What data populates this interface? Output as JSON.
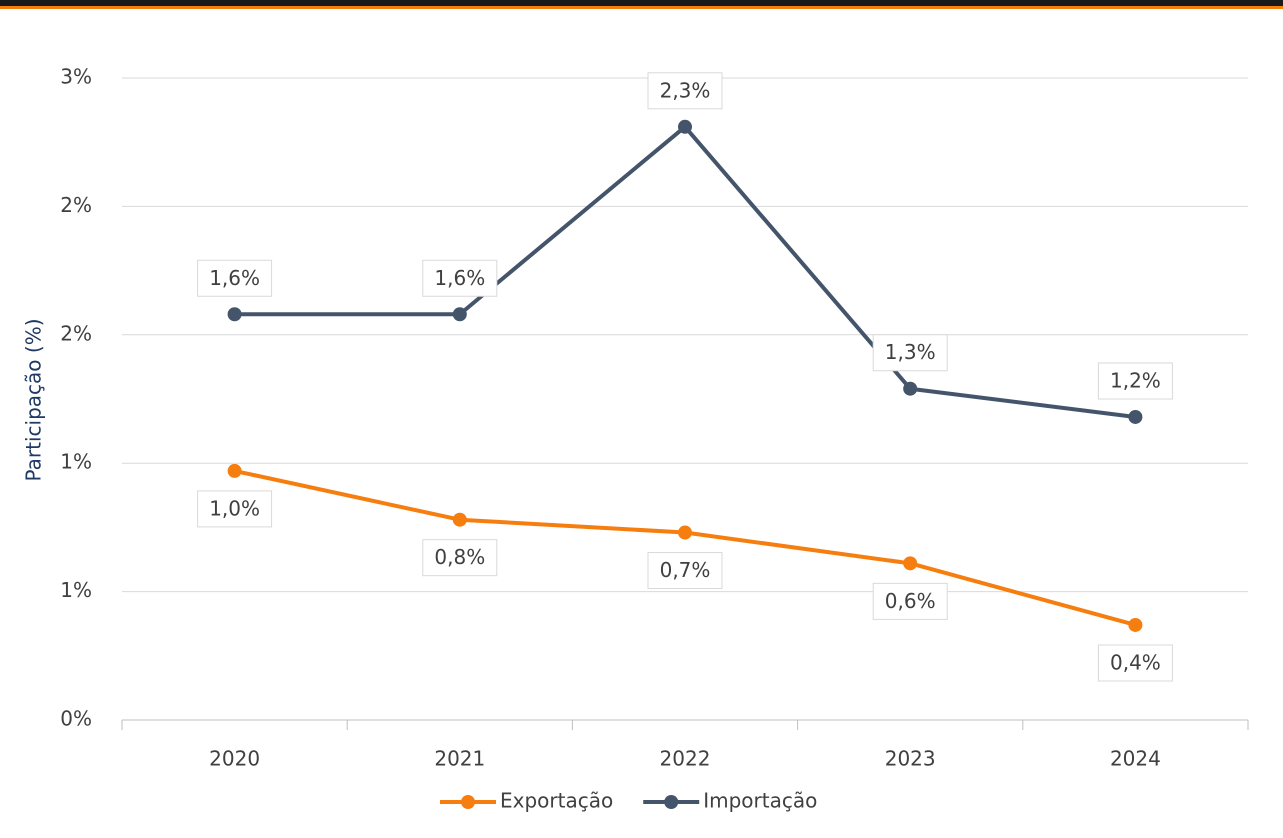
{
  "chart_data": {
    "type": "line",
    "y_label": "Participação (%)",
    "categories": [
      "2020",
      "2021",
      "2022",
      "2023",
      "2024"
    ],
    "series": [
      {
        "name": "Exportação",
        "color": "#f57e0f",
        "values": [
          0.97,
          0.78,
          0.73,
          0.61,
          0.37
        ],
        "value_labels": [
          "1,0%",
          "0,8%",
          "0,7%",
          "0,6%",
          "0,4%"
        ]
      },
      {
        "name": "Importação",
        "color": "#44546a",
        "values": [
          1.58,
          1.58,
          2.31,
          1.29,
          1.18
        ],
        "value_labels": [
          "1,6%",
          "1,6%",
          "2,3%",
          "1,3%",
          "1,2%"
        ]
      }
    ],
    "ylim": [
      0,
      2.5
    ],
    "yticks": [
      {
        "value": 0,
        "label": "0%"
      },
      {
        "value": 0.5,
        "label": "1%"
      },
      {
        "value": 1,
        "label": "1%"
      },
      {
        "value": 1.5,
        "label": "2%"
      },
      {
        "value": 2,
        "label": "2%"
      },
      {
        "value": 2.5,
        "label": "3%"
      }
    ],
    "grid": true,
    "legend": "bottom"
  }
}
